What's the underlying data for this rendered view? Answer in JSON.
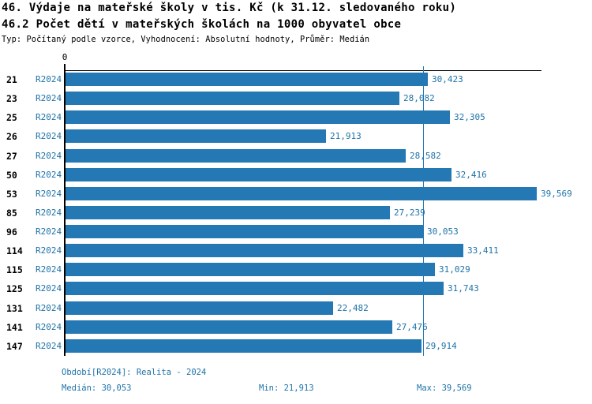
{
  "header": {
    "title_line1": "46. Výdaje na mateřské školy v tis. Kč (k 31.12. sledovaného roku)",
    "title_line2": "46.2 Počet dětí v mateřských školách na 1000 obyvatel obce",
    "meta_line": "Typ: Počítaný podle vzorce, Vyhodnocení: Absolutní hodnoty, Průměr: Medián"
  },
  "chart_data": {
    "type": "bar",
    "orientation": "horizontal",
    "title": "46. Výdaje na mateřské školy v tis. Kč (k 31.12. sledovaného roku)",
    "subtitle": "46.2 Počet dětí v mateřských školách na 1000 obyvatel obce",
    "xlabel": "",
    "ylabel": "",
    "xlim": [
      0,
      40000
    ],
    "grid": false,
    "legend_position": "none",
    "x_ticks": [
      {
        "value": 0,
        "label": "0"
      }
    ],
    "series_label": "R2024",
    "categories": [
      "21",
      "23",
      "25",
      "26",
      "27",
      "50",
      "53",
      "85",
      "96",
      "114",
      "115",
      "125",
      "131",
      "141",
      "147"
    ],
    "values": [
      30423,
      28082,
      32305,
      21913,
      28582,
      32416,
      39569,
      27239,
      30053,
      33411,
      31029,
      31743,
      22482,
      27476,
      29914
    ],
    "value_labels": [
      "30,423",
      "28,082",
      "32,305",
      "21,913",
      "28,582",
      "32,416",
      "39,569",
      "27,239",
      "30,053",
      "33,411",
      "31,029",
      "31,743",
      "22,482",
      "27,476",
      "29,914"
    ],
    "median_line_value": 30053,
    "bar_color": "#2478b4",
    "median_line_color": "#2478b4",
    "accent_text_color": "#1d72a8",
    "axis_color": "#000000"
  },
  "footer": {
    "period_label": "Období[R2024]: Realita - 2024",
    "median_label": "Medián: 30,053",
    "min_label": "Min: 21,913",
    "max_label": "Max: 39,569"
  }
}
